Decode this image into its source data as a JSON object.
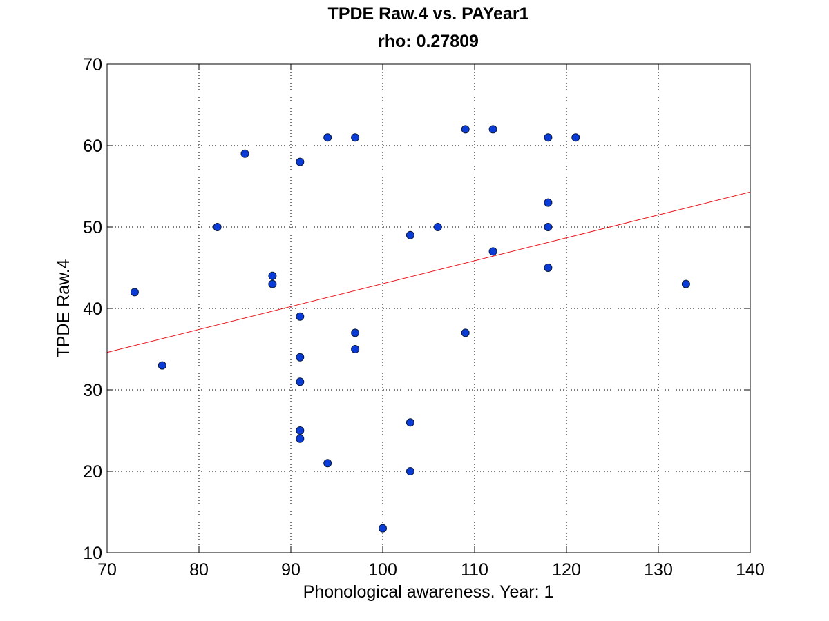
{
  "chart_data": {
    "type": "scatter",
    "title": "TPDE Raw.4 vs. PAYear1",
    "subtitle": "rho: 0.27809",
    "xlabel": "Phonological awareness. Year: 1",
    "ylabel": "TPDE Raw.4",
    "xlim": [
      70,
      140
    ],
    "ylim": [
      10,
      70
    ],
    "xticks": [
      70,
      80,
      90,
      100,
      110,
      120,
      130,
      140
    ],
    "yticks": [
      10,
      20,
      30,
      40,
      50,
      60,
      70
    ],
    "grid": true,
    "colors": {
      "marker_fill": "#0a3bd6",
      "marker_edge": "#0a1a3a",
      "fit_line": "#e8141c",
      "grid": "#000000"
    },
    "points": [
      {
        "x": 73,
        "y": 42
      },
      {
        "x": 76,
        "y": 33
      },
      {
        "x": 82,
        "y": 50
      },
      {
        "x": 85,
        "y": 59
      },
      {
        "x": 88,
        "y": 44
      },
      {
        "x": 88,
        "y": 43
      },
      {
        "x": 91,
        "y": 58
      },
      {
        "x": 91,
        "y": 39
      },
      {
        "x": 91,
        "y": 34
      },
      {
        "x": 91,
        "y": 31
      },
      {
        "x": 91,
        "y": 25
      },
      {
        "x": 91,
        "y": 24
      },
      {
        "x": 94,
        "y": 61
      },
      {
        "x": 94,
        "y": 21
      },
      {
        "x": 97,
        "y": 61
      },
      {
        "x": 97,
        "y": 37
      },
      {
        "x": 97,
        "y": 35
      },
      {
        "x": 100,
        "y": 13
      },
      {
        "x": 103,
        "y": 49
      },
      {
        "x": 103,
        "y": 26
      },
      {
        "x": 103,
        "y": 20
      },
      {
        "x": 106,
        "y": 50
      },
      {
        "x": 109,
        "y": 62
      },
      {
        "x": 109,
        "y": 37
      },
      {
        "x": 112,
        "y": 62
      },
      {
        "x": 112,
        "y": 47
      },
      {
        "x": 118,
        "y": 61
      },
      {
        "x": 118,
        "y": 53
      },
      {
        "x": 118,
        "y": 50
      },
      {
        "x": 118,
        "y": 45
      },
      {
        "x": 121,
        "y": 61
      },
      {
        "x": 133,
        "y": 43
      }
    ],
    "fit_line": {
      "x": [
        70,
        140
      ],
      "y": [
        34.6,
        54.3
      ]
    }
  }
}
